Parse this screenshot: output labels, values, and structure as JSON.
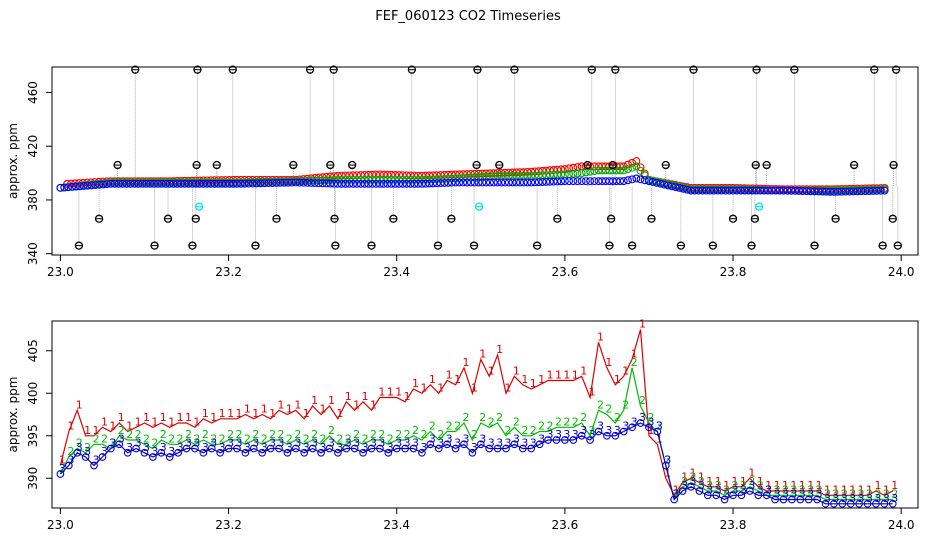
{
  "title": "FEF_060123  CO2 Timeseries",
  "chart_data": [
    {
      "type": "scatter",
      "ylabel": "approx. ppm",
      "xlim": [
        22.99,
        24.02
      ],
      "ylim": [
        339,
        479
      ],
      "xticks": [
        23.0,
        23.2,
        23.4,
        23.6,
        23.8,
        24.0
      ],
      "xtick_labels": [
        "23.0",
        "23.2",
        "23.4",
        "23.6",
        "23.8",
        "24.0"
      ],
      "yticks": [
        340,
        380,
        420,
        460
      ],
      "ytick_labels": [
        "340",
        "380",
        "420",
        "460"
      ],
      "grid": false,
      "series": [
        {
          "color": "#000000",
          "marker": "open-circle-cross",
          "x": [
            23.022,
            23.046,
            23.068,
            23.089,
            23.112,
            23.128,
            23.157,
            23.161,
            23.162,
            23.163,
            23.186,
            23.205,
            23.232,
            23.257,
            23.277,
            23.297,
            23.321,
            23.325,
            23.326,
            23.327,
            23.347,
            23.37,
            23.396,
            23.418,
            23.449,
            23.465,
            23.492,
            23.495,
            23.496,
            23.522,
            23.54,
            23.567,
            23.591,
            23.627,
            23.632,
            23.653,
            23.655,
            23.657,
            23.66,
            23.68,
            23.703,
            23.72,
            23.738,
            23.753,
            23.776,
            23.8,
            23.822,
            23.826,
            23.827,
            23.828,
            23.84,
            23.873,
            23.897,
            23.922,
            23.944,
            23.968,
            23.978,
            23.99,
            23.991,
            23.994,
            23.996
          ],
          "y": [
            346,
            366,
            406,
            477,
            346,
            366,
            346,
            366,
            406,
            477,
            406,
            477,
            346,
            366,
            406,
            477,
            406,
            477,
            366,
            346,
            406,
            346,
            366,
            477,
            346,
            366,
            346,
            406,
            477,
            406,
            477,
            346,
            366,
            406,
            477,
            346,
            366,
            406,
            477,
            346,
            366,
            406,
            346,
            477,
            346,
            366,
            346,
            366,
            406,
            477,
            406,
            477,
            346,
            366,
            406,
            477,
            346,
            366,
            406,
            477,
            346
          ]
        },
        {
          "color": "#00e5e5",
          "marker": "open-circle-cross",
          "x": [
            23.165,
            23.498,
            23.831
          ],
          "y": [
            375,
            375,
            375
          ]
        },
        {
          "color": "#ff0000",
          "marker": "open-circle",
          "x": [
            23.008,
            23.06,
            23.13,
            23.21,
            23.28,
            23.33,
            23.38,
            23.43,
            23.47,
            23.52,
            23.56,
            23.6,
            23.62,
            23.64,
            23.67,
            23.685,
            23.7,
            23.75,
            23.8,
            23.86,
            23.92,
            23.985
          ],
          "y": [
            392,
            394,
            394,
            395,
            395,
            398,
            399,
            398,
            399,
            400,
            401,
            403,
            405,
            405,
            405,
            409,
            395,
            389,
            389,
            388,
            388,
            389
          ]
        },
        {
          "color": "#00aa00",
          "marker": "open-circle",
          "x": [
            23.0,
            23.06,
            23.13,
            23.21,
            23.28,
            23.33,
            23.38,
            23.43,
            23.47,
            23.52,
            23.56,
            23.6,
            23.62,
            23.64,
            23.67,
            23.685,
            23.7,
            23.75,
            23.8,
            23.86,
            23.92,
            23.985
          ],
          "y": [
            389,
            393,
            393,
            393,
            394,
            395,
            395,
            395,
            396,
            398,
            398,
            399,
            400,
            402,
            402,
            405,
            395,
            388,
            388,
            387,
            387,
            388
          ]
        },
        {
          "color": "#0000ff",
          "marker": "open-circle",
          "x": [
            23.0,
            23.06,
            23.13,
            23.21,
            23.28,
            23.33,
            23.38,
            23.43,
            23.47,
            23.52,
            23.56,
            23.6,
            23.62,
            23.64,
            23.67,
            23.685,
            23.7,
            23.75,
            23.8,
            23.86,
            23.92,
            23.985
          ],
          "y": [
            389,
            392,
            392,
            392,
            393,
            392,
            392,
            392,
            393,
            393,
            393,
            394,
            394,
            394,
            394,
            396,
            394,
            387,
            387,
            387,
            386,
            387
          ]
        }
      ]
    },
    {
      "type": "line",
      "ylabel": "approx. ppm",
      "xlim": [
        22.99,
        24.02
      ],
      "ylim": [
        386.5,
        408.5
      ],
      "xticks": [
        23.0,
        23.2,
        23.4,
        23.6,
        23.8,
        24.0
      ],
      "xtick_labels": [
        "23.0",
        "23.2",
        "23.4",
        "23.6",
        "23.8",
        "24.0"
      ],
      "yticks": [
        390,
        395,
        400,
        405
      ],
      "ytick_labels": [
        "390",
        "395",
        "400",
        "405"
      ],
      "grid": false,
      "x": [
        23.0,
        23.01,
        23.02,
        23.03,
        23.04,
        23.05,
        23.06,
        23.07,
        23.08,
        23.09,
        23.1,
        23.11,
        23.12,
        23.13,
        23.14,
        23.15,
        23.16,
        23.17,
        23.18,
        23.19,
        23.2,
        23.21,
        23.22,
        23.23,
        23.24,
        23.25,
        23.26,
        23.27,
        23.28,
        23.29,
        23.3,
        23.31,
        23.32,
        23.33,
        23.34,
        23.35,
        23.36,
        23.37,
        23.38,
        23.39,
        23.4,
        23.41,
        23.42,
        23.43,
        23.44,
        23.45,
        23.46,
        23.47,
        23.48,
        23.49,
        23.5,
        23.51,
        23.52,
        23.53,
        23.54,
        23.55,
        23.56,
        23.57,
        23.58,
        23.59,
        23.6,
        23.61,
        23.62,
        23.63,
        23.64,
        23.65,
        23.66,
        23.67,
        23.68,
        23.69,
        23.7,
        23.71,
        23.72,
        23.73,
        23.74,
        23.75,
        23.76,
        23.77,
        23.78,
        23.79,
        23.8,
        23.81,
        23.82,
        23.83,
        23.84,
        23.85,
        23.86,
        23.87,
        23.88,
        23.89,
        23.9,
        23.91,
        23.92,
        23.93,
        23.94,
        23.95,
        23.96,
        23.97,
        23.98,
        23.99
      ],
      "series": [
        {
          "label_char": "1",
          "color": "#dd0000",
          "values": [
            391.5,
            395.5,
            398.0,
            395.0,
            395.0,
            396.0,
            395.5,
            396.5,
            395.5,
            396.0,
            396.5,
            396.0,
            396.5,
            396.0,
            396.5,
            396.5,
            396.0,
            397.0,
            396.5,
            397.0,
            397.0,
            397.0,
            397.5,
            397.0,
            397.5,
            397.0,
            398.0,
            397.5,
            398.0,
            397.0,
            398.5,
            397.5,
            398.5,
            397.0,
            399.0,
            398.0,
            399.0,
            398.0,
            399.5,
            399.5,
            399.5,
            399.0,
            400.5,
            400.0,
            401.0,
            400.0,
            401.5,
            401.0,
            403.0,
            400.0,
            404.0,
            402.0,
            404.5,
            400.0,
            402.0,
            401.0,
            400.5,
            401.0,
            401.5,
            401.5,
            401.5,
            401.5,
            402.0,
            399.5,
            406.0,
            403.0,
            401.0,
            402.0,
            404.0,
            407.5,
            395.0,
            394.0,
            390.0,
            388.0,
            389.5,
            390.0,
            389.5,
            389.0,
            389.0,
            388.5,
            389.0,
            389.0,
            390.0,
            389.0,
            388.5,
            388.5,
            388.5,
            388.5,
            388.5,
            388.5,
            388.5,
            388.0,
            388.0,
            388.0,
            388.0,
            388.0,
            388.0,
            388.5,
            388.0,
            388.5
          ]
        },
        {
          "label_char": "2",
          "color": "#00bb00",
          "values": [
            390.5,
            392.5,
            393.5,
            393.0,
            394.0,
            394.0,
            393.5,
            395.0,
            394.5,
            394.5,
            394.0,
            393.5,
            394.5,
            394.0,
            394.0,
            394.5,
            394.0,
            394.5,
            394.0,
            394.0,
            394.5,
            394.5,
            394.0,
            394.5,
            394.0,
            394.5,
            394.5,
            394.0,
            394.5,
            394.0,
            394.5,
            394.0,
            395.0,
            394.0,
            394.0,
            394.5,
            394.0,
            394.5,
            394.5,
            394.0,
            394.5,
            394.5,
            395.0,
            394.5,
            395.5,
            394.5,
            395.5,
            395.5,
            396.5,
            394.5,
            396.5,
            396.0,
            396.5,
            395.0,
            396.0,
            395.0,
            395.0,
            395.5,
            395.5,
            396.0,
            396.0,
            396.0,
            396.5,
            395.0,
            398.0,
            397.5,
            396.5,
            398.0,
            403.0,
            398.5,
            396.5,
            395.5,
            391.5,
            387.5,
            389.0,
            389.5,
            389.0,
            388.5,
            388.5,
            388.0,
            388.5,
            388.5,
            389.0,
            388.5,
            388.0,
            388.0,
            388.0,
            388.0,
            388.0,
            388.0,
            388.0,
            387.5,
            387.5,
            387.5,
            387.5,
            387.5,
            387.5,
            387.5,
            387.5,
            387.5
          ]
        },
        {
          "label_char": "3",
          "color": "#0000cc",
          "values": [
            390.5,
            391.5,
            393.0,
            392.5,
            391.5,
            392.5,
            393.5,
            394.0,
            393.0,
            393.5,
            393.0,
            392.5,
            393.0,
            392.5,
            393.0,
            393.5,
            393.5,
            393.0,
            393.5,
            393.0,
            393.5,
            393.5,
            393.0,
            393.5,
            393.0,
            393.5,
            393.5,
            393.0,
            393.5,
            393.0,
            393.5,
            393.0,
            393.5,
            393.0,
            393.5,
            393.5,
            393.0,
            393.5,
            393.5,
            393.0,
            393.5,
            393.5,
            393.5,
            393.0,
            394.0,
            393.5,
            394.0,
            393.5,
            394.0,
            393.0,
            394.0,
            393.5,
            393.5,
            393.5,
            394.0,
            393.5,
            393.5,
            394.0,
            394.5,
            394.5,
            394.5,
            394.5,
            395.0,
            394.5,
            395.5,
            395.0,
            395.0,
            395.5,
            396.0,
            396.5,
            396.0,
            395.5,
            391.5,
            387.5,
            388.5,
            389.0,
            388.5,
            388.0,
            388.0,
            387.5,
            388.0,
            388.0,
            388.5,
            388.0,
            388.0,
            387.5,
            387.5,
            387.5,
            387.5,
            387.5,
            387.5,
            387.0,
            387.0,
            387.0,
            387.0,
            387.0,
            387.0,
            387.0,
            387.0,
            387.0
          ]
        }
      ]
    }
  ]
}
